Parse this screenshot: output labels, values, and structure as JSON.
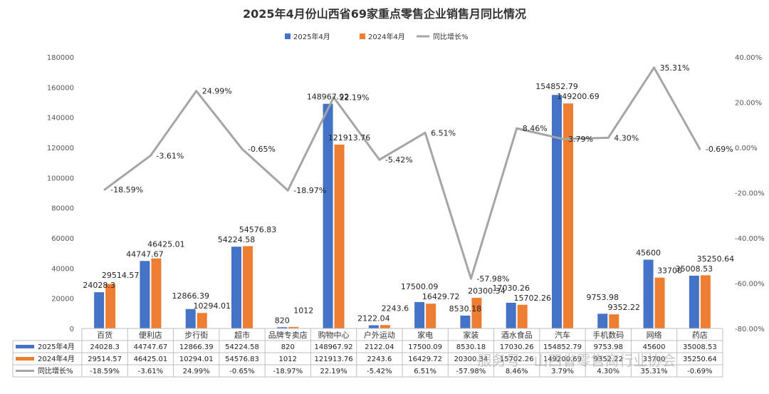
{
  "chart_data": {
    "type": "bar",
    "title": "2025年4月份山西省69家重点零售企业销售月同比情况",
    "categories": [
      "百货",
      "便利店",
      "步行街",
      "超市",
      "品牌专卖店",
      "购物中心",
      "户外运动",
      "家电",
      "家装",
      "酒水食品",
      "汽车",
      "手机数码",
      "网络",
      "药店"
    ],
    "series": [
      {
        "name": "2025年4月",
        "color": "#4472C4",
        "values": [
          24028.3,
          44747.67,
          12866.39,
          54224.58,
          820,
          148967.92,
          2122.04,
          17500.09,
          8530.18,
          17030.26,
          154852.79,
          9753.98,
          45600,
          35008.53
        ]
      },
      {
        "name": "2024年4月",
        "color": "#ED7D31",
        "values": [
          29514.57,
          46425.01,
          10294.01,
          54576.83,
          1012,
          121913.76,
          2243.6,
          16429.72,
          20300.34,
          15702.26,
          149200.69,
          9352.22,
          33700,
          35250.64
        ]
      }
    ],
    "line_series": {
      "name": "同比增长%",
      "color": "#A5A5A5",
      "values": [
        -18.59,
        -3.61,
        24.99,
        -0.65,
        -18.97,
        22.19,
        -5.42,
        6.51,
        -57.98,
        8.46,
        3.79,
        4.3,
        35.31,
        -0.69
      ]
    },
    "bar_labels": [
      [
        "24028.3",
        "29514.57"
      ],
      [
        "44747.67",
        "46425.01"
      ],
      [
        "12866.39",
        "10294.01"
      ],
      [
        "54224.58",
        "54576.83"
      ],
      [
        "820",
        "1012"
      ],
      [
        "148967.92",
        "121913.76"
      ],
      [
        "2122.04",
        "2243.6"
      ],
      [
        "17500.09",
        "16429.72"
      ],
      [
        "8530.18",
        "20300.34"
      ],
      [
        "17030.26",
        "15702.26"
      ],
      [
        "154852.79",
        "149200.69"
      ],
      [
        "9753.98",
        "9352.22"
      ],
      [
        "45600",
        "33700"
      ],
      [
        "35008.53",
        "35250.64"
      ]
    ],
    "line_labels": [
      "-18.59%",
      "-3.61%",
      "24.99%",
      "-0.65%",
      "-18.97%",
      "22.19%",
      "-5.42%",
      "6.51%",
      "-57.98%",
      "8.46%",
      "3.79%",
      "4.30%",
      "35.31%",
      "-0.69%"
    ],
    "table_labels": [
      "-18.59%",
      "-3.61%",
      "24.99%",
      "-0.65%",
      "-18.97%",
      "22.19%",
      "-5.42%",
      "6.51%",
      "-57.98%",
      "8.46%",
      "3.79%",
      "4.30%",
      "35.31%",
      "-0.69%"
    ],
    "ylim_left": [
      0,
      180000
    ],
    "ylim_right": [
      -80,
      40
    ],
    "left_ticks": [
      "0",
      "20000",
      "40000",
      "60000",
      "80000",
      "100000",
      "120000",
      "140000",
      "160000",
      "180000"
    ],
    "right_ticks": [
      "-80.00%",
      "-60.00%",
      "-40.00%",
      "-20.00%",
      "0.00%",
      "20.00%",
      "40.00%"
    ],
    "grid": false,
    "legend_position": "top-center",
    "data_table": true
  },
  "watermark": "服务号 · 山西省零售商行业协会"
}
